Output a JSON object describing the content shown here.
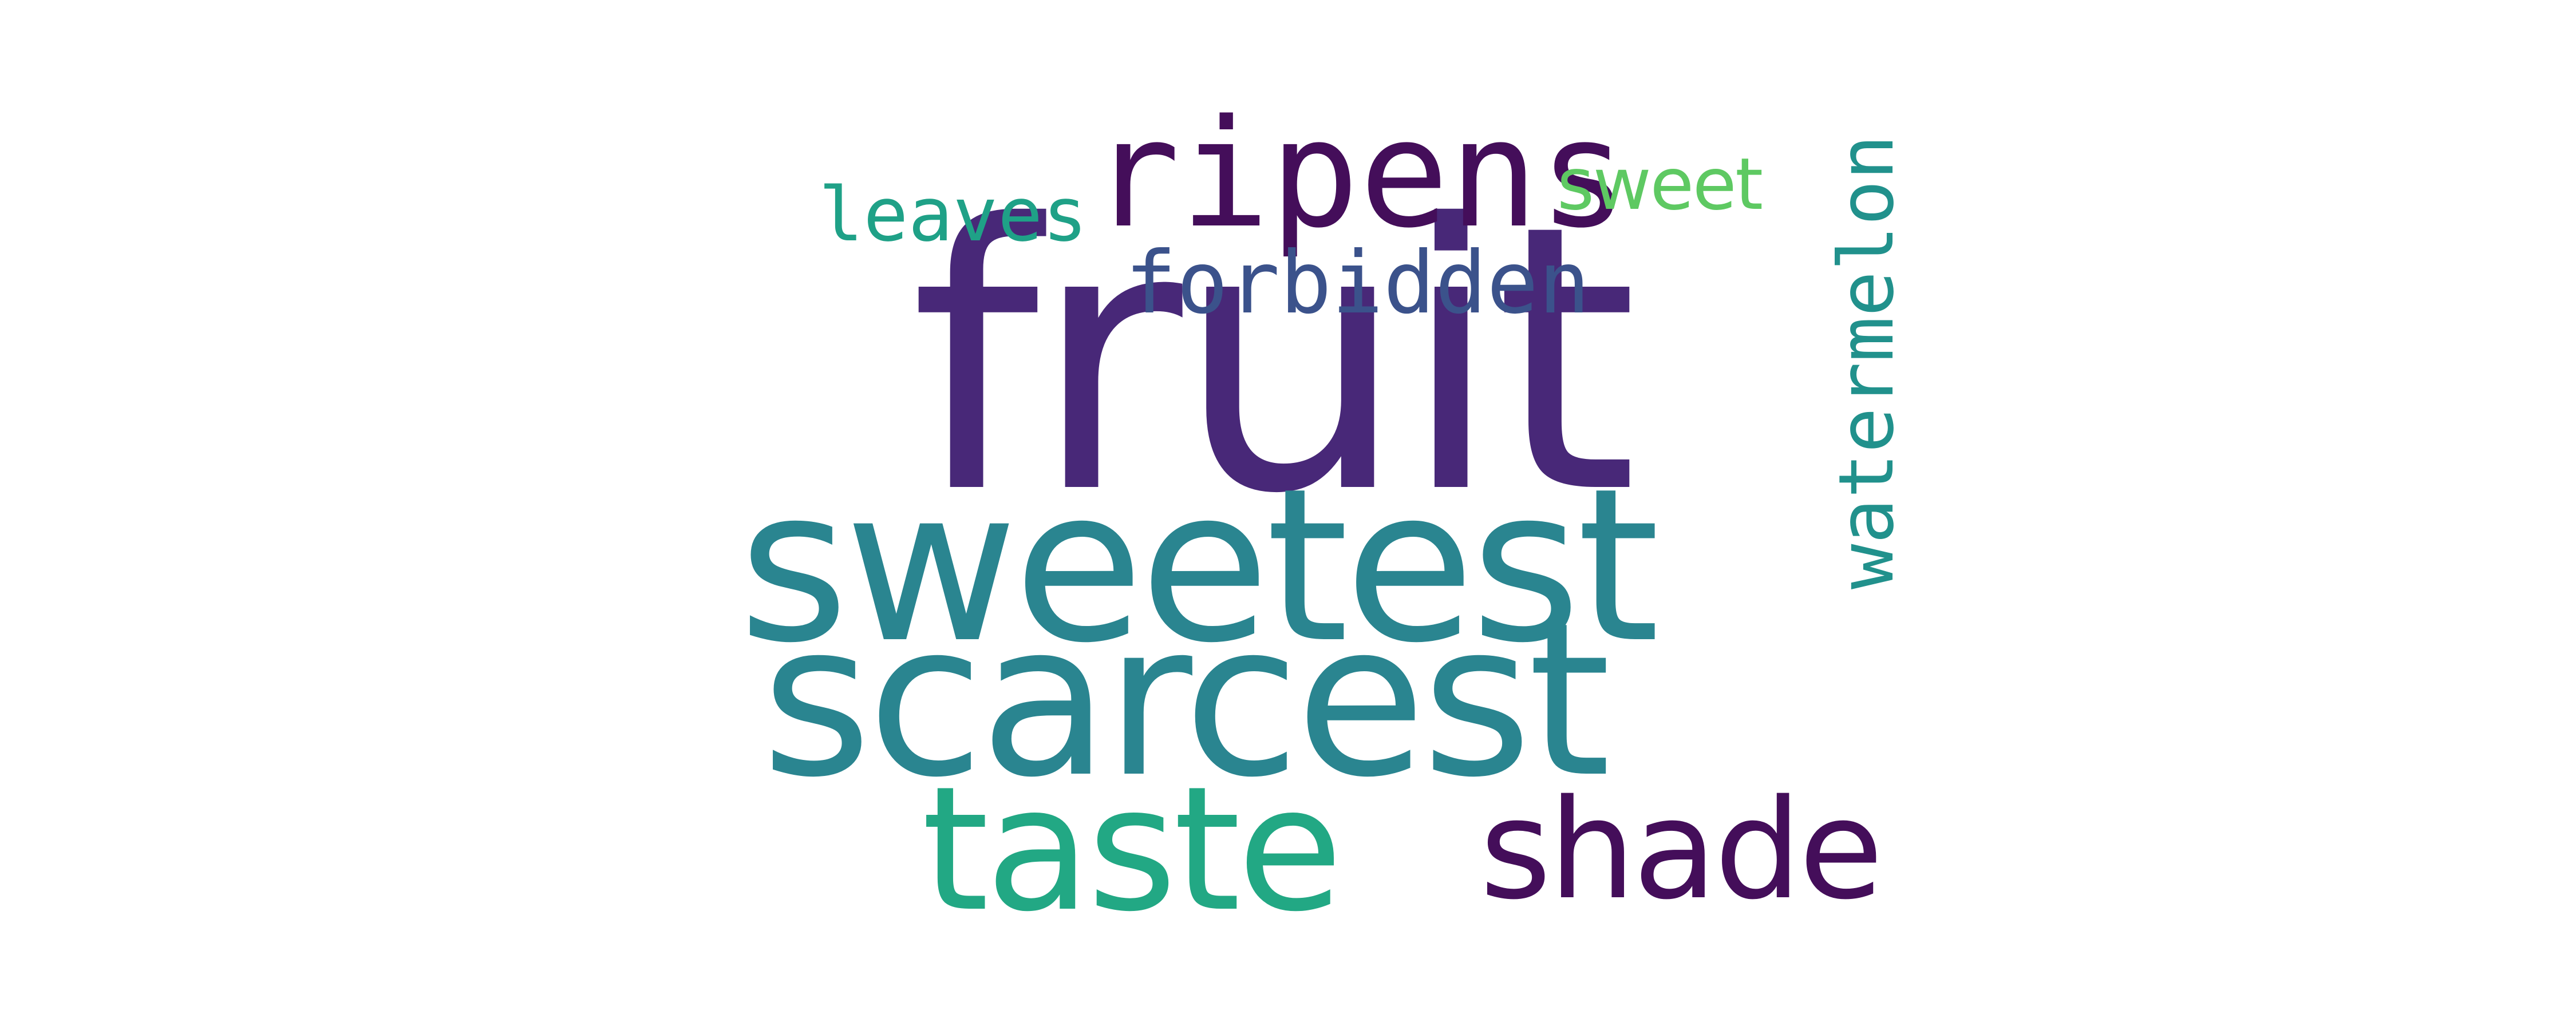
{
  "words": [
    {
      "id": "fruit",
      "text": "fruit",
      "color": "#482878"
    },
    {
      "id": "sweetest",
      "text": "sweetest",
      "color": "#2a8590"
    },
    {
      "id": "scarcest",
      "text": "scarcest",
      "color": "#2a8590"
    },
    {
      "id": "taste",
      "text": "taste",
      "color": "#22a884"
    },
    {
      "id": "shade",
      "text": "shade",
      "color": "#440e5a"
    },
    {
      "id": "ripens",
      "text": "ripens",
      "color": "#440e5a"
    },
    {
      "id": "forbidden",
      "text": "forbidden",
      "color": "#3b528b"
    },
    {
      "id": "leaves",
      "text": "leaves",
      "color": "#1fa187"
    },
    {
      "id": "sweet",
      "text": "sweet",
      "color": "#5ec962"
    },
    {
      "id": "watermelon",
      "text": "watermelon",
      "color": "#21918c"
    }
  ]
}
